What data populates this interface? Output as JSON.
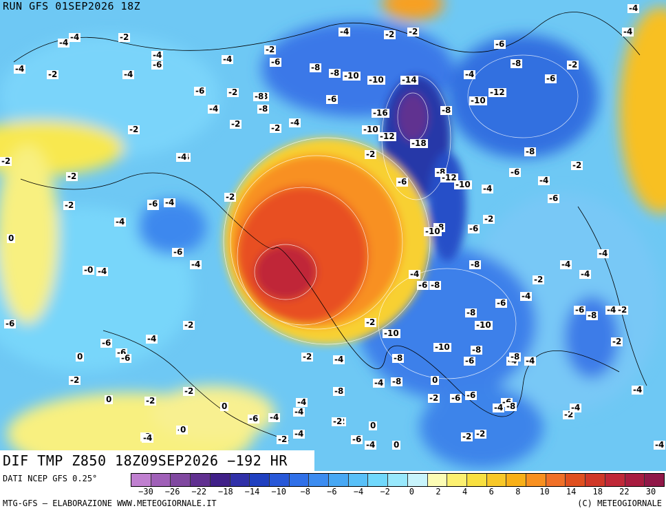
{
  "header": {
    "run_label": "RUN GFS 01SEP2026 18Z"
  },
  "map_title": "DIF TMP Z850 18Z09SEP2026 −192 HR",
  "footer": {
    "data_source": "DATI NCEP GFS 0.25°",
    "credit_left": "MTG-GFS – ELABORAZIONE WWW.METEOGIORNALE.IT",
    "credit_right": "(C) METEOGIORNALE"
  },
  "legend": {
    "colors": [
      "#c080d0",
      "#a060b8",
      "#8048a0",
      "#603090",
      "#402088",
      "#3030a8",
      "#2040c0",
      "#2858d8",
      "#3070e8",
      "#3c8cf0",
      "#48a8f4",
      "#58c0f8",
      "#70d8fc",
      "#98e8fc",
      "#c8f4fc",
      "#fcfcb4",
      "#fcf070",
      "#f8e040",
      "#f8c828",
      "#f8b018",
      "#f89020",
      "#f07028",
      "#e05020",
      "#d03828",
      "#c02838",
      "#a81c40",
      "#901848"
    ],
    "ticks": [
      "−30",
      "−26",
      "−22",
      "−18",
      "−14",
      "−10",
      "−8",
      "−6",
      "−4",
      "−2",
      "0",
      "2",
      "4",
      "6",
      "8",
      "10",
      "14",
      "18",
      "22",
      "30"
    ]
  },
  "contour_labels": [
    {
      "t": "-4"
    },
    {
      "t": "-2"
    },
    {
      "t": "-2"
    },
    {
      "t": "-4"
    },
    {
      "t": "-4"
    },
    {
      "t": "-8"
    },
    {
      "t": "-6"
    },
    {
      "t": "-8"
    },
    {
      "t": "-4"
    },
    {
      "t": "-2"
    },
    {
      "t": "-4"
    },
    {
      "t": "-4"
    },
    {
      "t": "-6"
    },
    {
      "t": "-2"
    },
    {
      "t": "-4"
    },
    {
      "t": "-4"
    },
    {
      "t": "-2"
    },
    {
      "t": "-6"
    },
    {
      "t": "-8"
    },
    {
      "t": "-8"
    },
    {
      "t": "-10"
    },
    {
      "t": "-10"
    },
    {
      "t": "-6"
    },
    {
      "t": "-8"
    },
    {
      "t": "-2"
    },
    {
      "t": "-4"
    },
    {
      "t": "-2"
    },
    {
      "t": "-4"
    },
    {
      "t": "-6"
    },
    {
      "t": "-4"
    },
    {
      "t": "-2"
    },
    {
      "t": "-8"
    },
    {
      "t": "-6"
    },
    {
      "t": "-6"
    },
    {
      "t": "-14"
    },
    {
      "t": "-4"
    },
    {
      "t": "-12"
    },
    {
      "t": "-10"
    },
    {
      "t": "-6"
    },
    {
      "t": "-2"
    },
    {
      "t": "-2"
    },
    {
      "t": "-4"
    },
    {
      "t": "-2"
    },
    {
      "t": "-16"
    },
    {
      "t": "-8"
    },
    {
      "t": "-10"
    },
    {
      "t": "-12"
    },
    {
      "t": "-18"
    },
    {
      "t": "-2"
    },
    {
      "t": "-4"
    },
    {
      "t": "-8"
    },
    {
      "t": "-6"
    },
    {
      "t": "-2"
    },
    {
      "t": "-2"
    },
    {
      "t": "-8"
    },
    {
      "t": "-12"
    },
    {
      "t": "-10"
    },
    {
      "t": "-6"
    },
    {
      "t": "-4"
    },
    {
      "t": "-4"
    },
    {
      "t": "-2"
    },
    {
      "t": "-4"
    },
    {
      "t": "-6"
    },
    {
      "t": "-6"
    },
    {
      "t": "-2"
    },
    {
      "t": "-4"
    },
    {
      "t": "-8"
    },
    {
      "t": "-6"
    },
    {
      "t": "0"
    },
    {
      "t": "-10"
    },
    {
      "t": "-2"
    },
    {
      "t": "-6"
    },
    {
      "t": "-4"
    },
    {
      "t": "-8"
    },
    {
      "t": "-4"
    },
    {
      "t": "-4"
    },
    {
      "t": "-0"
    },
    {
      "t": "-4"
    },
    {
      "t": "-4"
    },
    {
      "t": "-6"
    },
    {
      "t": "-8"
    },
    {
      "t": "-2"
    },
    {
      "t": "-4"
    },
    {
      "t": "-6"
    },
    {
      "t": "-8"
    },
    {
      "t": "-2"
    },
    {
      "t": "-6"
    },
    {
      "t": "-8"
    },
    {
      "t": "-2"
    },
    {
      "t": "-10"
    },
    {
      "t": "-2"
    },
    {
      "t": "-4"
    },
    {
      "t": "-6"
    },
    {
      "t": "-10"
    },
    {
      "t": "-10"
    },
    {
      "t": "-4"
    },
    {
      "t": "-4"
    },
    {
      "t": "0"
    },
    {
      "t": "-6"
    },
    {
      "t": "-2"
    },
    {
      "t": "-4"
    },
    {
      "t": "-8"
    },
    {
      "t": "-6"
    },
    {
      "t": "-4"
    },
    {
      "t": "-4"
    },
    {
      "t": "-2"
    },
    {
      "t": "-4"
    },
    {
      "t": "0"
    },
    {
      "t": "-8"
    },
    {
      "t": "-2"
    },
    {
      "t": "-6"
    },
    {
      "t": "-6"
    },
    {
      "t": "-6"
    },
    {
      "t": "-4"
    },
    {
      "t": "0"
    },
    {
      "t": "-4"
    },
    {
      "t": "-2"
    },
    {
      "t": "-4"
    },
    {
      "t": "-2"
    },
    {
      "t": "-6"
    },
    {
      "t": "-4"
    },
    {
      "t": "-2"
    },
    {
      "t": "0"
    },
    {
      "t": "-2"
    },
    {
      "t": "-4"
    },
    {
      "t": "-2"
    },
    {
      "t": "-6"
    },
    {
      "t": "-2"
    },
    {
      "t": "-4"
    },
    {
      "t": "-4"
    },
    {
      "t": "-2"
    },
    {
      "t": "0"
    },
    {
      "t": "-4"
    },
    {
      "t": "0"
    },
    {
      "t": "-4"
    },
    {
      "t": "-2"
    },
    {
      "t": "-4"
    },
    {
      "t": "-4"
    },
    {
      "t": "0"
    },
    {
      "t": "-2"
    },
    {
      "t": "-2"
    },
    {
      "t": "-6"
    },
    {
      "t": "-8"
    },
    {
      "t": "-6"
    },
    {
      "t": "-8"
    },
    {
      "t": "-4"
    },
    {
      "t": "-8"
    },
    {
      "t": "-2"
    },
    {
      "t": "-8"
    }
  ]
}
